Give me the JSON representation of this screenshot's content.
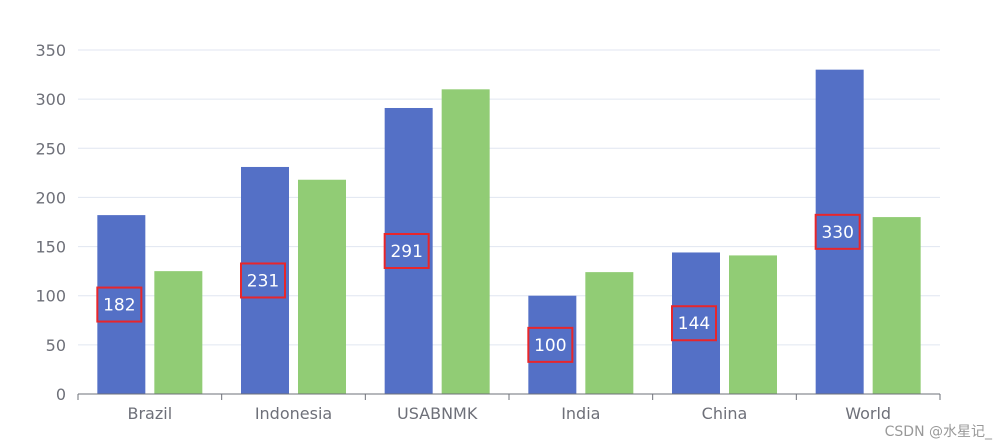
{
  "chart_data": {
    "type": "bar",
    "categories": [
      "Brazil",
      "Indonesia",
      "USABNMK",
      "India",
      "China",
      "World"
    ],
    "series": [
      {
        "values": [
          182,
          231,
          291,
          100,
          144,
          330
        ],
        "color": "#5470c6",
        "show_labels": true
      },
      {
        "values": [
          125,
          218,
          310,
          124,
          141,
          180
        ],
        "color": "#91cc75",
        "show_labels": false
      }
    ],
    "ylim": [
      0,
      350
    ],
    "yticks": [
      0,
      50,
      100,
      150,
      200,
      250,
      300,
      350
    ],
    "grid": true,
    "label_box_color": "#e8262b"
  },
  "watermark": "CSDN @水星记_"
}
